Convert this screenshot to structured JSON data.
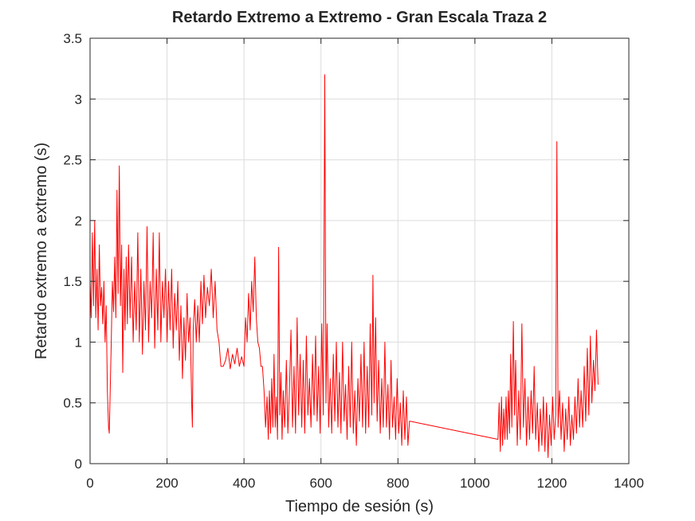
{
  "chart_data": {
    "type": "line",
    "title": "Retardo Extremo a Extremo - Gran Escala Traza 2",
    "xlabel": "Tiempo de sesión (s)",
    "ylabel": "Retardo extremo a extremo (s)",
    "xlim": [
      0,
      1400
    ],
    "ylim": [
      0,
      3.5
    ],
    "xticks": [
      0,
      200,
      400,
      600,
      800,
      1000,
      1200,
      1400
    ],
    "yticks": [
      0,
      0.5,
      1,
      1.5,
      2,
      2.5,
      3,
      3.5
    ],
    "xtick_labels": [
      "0",
      "200",
      "400",
      "600",
      "800",
      "1000",
      "1200",
      "1400"
    ],
    "ytick_labels": [
      "0",
      "0.5",
      "1",
      "1.5",
      "2",
      "2.5",
      "3",
      "3.5"
    ],
    "grid": true,
    "series": [
      {
        "color": "#ff0000",
        "points": [
          [
            0,
            1.5
          ],
          [
            3,
            1.2
          ],
          [
            6,
            1.9
          ],
          [
            9,
            1.3
          ],
          [
            12,
            2.0
          ],
          [
            15,
            1.2
          ],
          [
            18,
            1.6
          ],
          [
            21,
            1.1
          ],
          [
            24,
            1.8
          ],
          [
            27,
            1.3
          ],
          [
            30,
            1.45
          ],
          [
            33,
            1.15
          ],
          [
            36,
            1.5
          ],
          [
            39,
            1.0
          ],
          [
            42,
            1.3
          ],
          [
            45,
            0.6
          ],
          [
            48,
            0.3
          ],
          [
            50,
            0.25
          ],
          [
            52,
            0.55
          ],
          [
            55,
            1.0
          ],
          [
            58,
            1.5
          ],
          [
            61,
            1.25
          ],
          [
            64,
            1.7
          ],
          [
            67,
            1.2
          ],
          [
            70,
            2.25
          ],
          [
            73,
            1.4
          ],
          [
            76,
            2.45
          ],
          [
            79,
            1.3
          ],
          [
            82,
            1.8
          ],
          [
            85,
            0.75
          ],
          [
            88,
            1.6
          ],
          [
            91,
            1.1
          ],
          [
            94,
            1.7
          ],
          [
            97,
            1.15
          ],
          [
            100,
            1.8
          ],
          [
            104,
            1.2
          ],
          [
            108,
            1.7
          ],
          [
            112,
            1.0
          ],
          [
            116,
            1.5
          ],
          [
            120,
            1.1
          ],
          [
            124,
            1.9
          ],
          [
            128,
            1.0
          ],
          [
            132,
            1.6
          ],
          [
            136,
            0.9
          ],
          [
            140,
            1.5
          ],
          [
            144,
            1.1
          ],
          [
            148,
            1.95
          ],
          [
            152,
            1.0
          ],
          [
            156,
            1.5
          ],
          [
            160,
            1.2
          ],
          [
            164,
            1.9
          ],
          [
            168,
            0.95
          ],
          [
            172,
            1.6
          ],
          [
            176,
            1.1
          ],
          [
            180,
            1.9
          ],
          [
            184,
            1.0
          ],
          [
            188,
            1.5
          ],
          [
            192,
            1.2
          ],
          [
            196,
            1.6
          ],
          [
            200,
            1.0
          ],
          [
            204,
            1.5
          ],
          [
            208,
            1.1
          ],
          [
            212,
            1.6
          ],
          [
            216,
            0.95
          ],
          [
            220,
            1.4
          ],
          [
            224,
            1.1
          ],
          [
            228,
            1.5
          ],
          [
            232,
            0.85
          ],
          [
            236,
            1.3
          ],
          [
            240,
            0.7
          ],
          [
            244,
            1.2
          ],
          [
            248,
            0.85
          ],
          [
            252,
            1.4
          ],
          [
            256,
            1.0
          ],
          [
            260,
            1.2
          ],
          [
            264,
            0.5
          ],
          [
            266,
            0.3
          ],
          [
            268,
            1.1
          ],
          [
            272,
            1.35
          ],
          [
            276,
            1.0
          ],
          [
            280,
            1.3
          ],
          [
            284,
            1.0
          ],
          [
            288,
            1.5
          ],
          [
            292,
            1.15
          ],
          [
            296,
            1.55
          ],
          [
            300,
            1.2
          ],
          [
            305,
            1.45
          ],
          [
            310,
            1.3
          ],
          [
            315,
            1.6
          ],
          [
            320,
            1.2
          ],
          [
            325,
            1.5
          ],
          [
            330,
            1.1
          ],
          [
            335,
            1.0
          ],
          [
            340,
            0.8
          ],
          [
            346,
            0.8
          ],
          [
            352,
            0.85
          ],
          [
            358,
            0.95
          ],
          [
            364,
            0.78
          ],
          [
            370,
            0.9
          ],
          [
            376,
            0.82
          ],
          [
            382,
            0.95
          ],
          [
            388,
            0.8
          ],
          [
            394,
            0.88
          ],
          [
            400,
            0.8
          ],
          [
            404,
            1.2
          ],
          [
            408,
            1.0
          ],
          [
            412,
            1.4
          ],
          [
            416,
            1.1
          ],
          [
            420,
            1.5
          ],
          [
            424,
            1.25
          ],
          [
            428,
            1.7
          ],
          [
            432,
            1.2
          ],
          [
            436,
            1.0
          ],
          [
            440,
            0.95
          ],
          [
            444,
            0.8
          ],
          [
            448,
            0.8
          ],
          [
            452,
            0.6
          ],
          [
            456,
            0.3
          ],
          [
            460,
            0.55
          ],
          [
            463,
            0.2
          ],
          [
            466,
            0.6
          ],
          [
            469,
            0.25
          ],
          [
            472,
            0.7
          ],
          [
            475,
            0.3
          ],
          [
            478,
            0.9
          ],
          [
            481,
            0.3
          ],
          [
            484,
            0.55
          ],
          [
            487,
            0.2
          ],
          [
            490,
            1.78
          ],
          [
            493,
            0.4
          ],
          [
            496,
            0.75
          ],
          [
            499,
            0.2
          ],
          [
            502,
            0.6
          ],
          [
            506,
            0.3
          ],
          [
            510,
            0.85
          ],
          [
            514,
            0.25
          ],
          [
            518,
            0.6
          ],
          [
            522,
            1.1
          ],
          [
            526,
            0.3
          ],
          [
            530,
            0.8
          ],
          [
            534,
            0.25
          ],
          [
            538,
            1.2
          ],
          [
            542,
            0.4
          ],
          [
            546,
            0.9
          ],
          [
            550,
            0.3
          ],
          [
            554,
            0.85
          ],
          [
            558,
            0.25
          ],
          [
            562,
            1.05
          ],
          [
            566,
            0.4
          ],
          [
            570,
            0.7
          ],
          [
            574,
            0.3
          ],
          [
            578,
            0.9
          ],
          [
            582,
            0.4
          ],
          [
            586,
            1.05
          ],
          [
            590,
            0.35
          ],
          [
            594,
            0.8
          ],
          [
            598,
            0.25
          ],
          [
            602,
            1.15
          ],
          [
            606,
            0.4
          ],
          [
            610,
            3.2
          ],
          [
            613,
            0.5
          ],
          [
            616,
            1.15
          ],
          [
            620,
            0.3
          ],
          [
            624,
            0.7
          ],
          [
            628,
            0.25
          ],
          [
            632,
            0.9
          ],
          [
            636,
            0.35
          ],
          [
            640,
            1.0
          ],
          [
            644,
            0.3
          ],
          [
            648,
            0.75
          ],
          [
            652,
            0.25
          ],
          [
            656,
            1.0
          ],
          [
            660,
            0.35
          ],
          [
            664,
            0.65
          ],
          [
            668,
            0.2
          ],
          [
            672,
            0.8
          ],
          [
            676,
            0.3
          ],
          [
            680,
            1.0
          ],
          [
            684,
            0.25
          ],
          [
            688,
            0.6
          ],
          [
            692,
            0.15
          ],
          [
            696,
            0.7
          ],
          [
            700,
            0.35
          ],
          [
            704,
            0.9
          ],
          [
            708,
            0.3
          ],
          [
            712,
            1.0
          ],
          [
            716,
            0.25
          ],
          [
            720,
            0.8
          ],
          [
            724,
            0.3
          ],
          [
            728,
            1.15
          ],
          [
            732,
            0.4
          ],
          [
            735,
            1.55
          ],
          [
            738,
            0.5
          ],
          [
            742,
            1.2
          ],
          [
            746,
            0.35
          ],
          [
            750,
            0.85
          ],
          [
            754,
            0.25
          ],
          [
            758,
            0.7
          ],
          [
            762,
            0.3
          ],
          [
            766,
            1.0
          ],
          [
            770,
            0.3
          ],
          [
            774,
            0.65
          ],
          [
            778,
            0.2
          ],
          [
            782,
            0.85
          ],
          [
            786,
            0.3
          ],
          [
            790,
            0.55
          ],
          [
            794,
            0.2
          ],
          [
            798,
            0.7
          ],
          [
            802,
            0.25
          ],
          [
            806,
            0.5
          ],
          [
            810,
            0.15
          ],
          [
            814,
            0.6
          ],
          [
            818,
            0.2
          ],
          [
            822,
            0.55
          ],
          [
            826,
            0.15
          ],
          [
            830,
            0.35
          ],
          [
            1060,
            0.2
          ],
          [
            1063,
            0.5
          ],
          [
            1066,
            0.1
          ],
          [
            1069,
            0.55
          ],
          [
            1072,
            0.15
          ],
          [
            1075,
            0.45
          ],
          [
            1078,
            0.2
          ],
          [
            1081,
            0.55
          ],
          [
            1084,
            0.2
          ],
          [
            1087,
            0.6
          ],
          [
            1090,
            0.25
          ],
          [
            1093,
            0.9
          ],
          [
            1096,
            0.3
          ],
          [
            1100,
            1.17
          ],
          [
            1103,
            0.4
          ],
          [
            1106,
            0.85
          ],
          [
            1110,
            0.15
          ],
          [
            1114,
            0.6
          ],
          [
            1118,
            0.2
          ],
          [
            1122,
            1.15
          ],
          [
            1126,
            0.3
          ],
          [
            1130,
            0.7
          ],
          [
            1134,
            0.15
          ],
          [
            1138,
            0.55
          ],
          [
            1142,
            0.2
          ],
          [
            1146,
            0.6
          ],
          [
            1150,
            0.25
          ],
          [
            1154,
            0.8
          ],
          [
            1158,
            0.2
          ],
          [
            1162,
            0.5
          ],
          [
            1166,
            0.1
          ],
          [
            1170,
            0.45
          ],
          [
            1174,
            0.15
          ],
          [
            1178,
            0.55
          ],
          [
            1182,
            0.1
          ],
          [
            1186,
            0.5
          ],
          [
            1190,
            0.05
          ],
          [
            1194,
            0.4
          ],
          [
            1198,
            0.15
          ],
          [
            1202,
            0.55
          ],
          [
            1206,
            0.2
          ],
          [
            1210,
            0.4
          ],
          [
            1213,
            2.65
          ],
          [
            1216,
            0.3
          ],
          [
            1220,
            0.6
          ],
          [
            1224,
            0.2
          ],
          [
            1228,
            0.5
          ],
          [
            1232,
            0.1
          ],
          [
            1236,
            0.45
          ],
          [
            1240,
            0.2
          ],
          [
            1244,
            0.55
          ],
          [
            1248,
            0.15
          ],
          [
            1252,
            0.4
          ],
          [
            1256,
            0.2
          ],
          [
            1260,
            0.55
          ],
          [
            1264,
            0.25
          ],
          [
            1268,
            0.7
          ],
          [
            1272,
            0.3
          ],
          [
            1276,
            0.6
          ],
          [
            1280,
            0.3
          ],
          [
            1284,
            0.8
          ],
          [
            1288,
            0.35
          ],
          [
            1292,
            0.95
          ],
          [
            1296,
            0.4
          ],
          [
            1300,
            1.05
          ],
          [
            1304,
            0.5
          ],
          [
            1308,
            0.85
          ],
          [
            1312,
            0.6
          ],
          [
            1316,
            1.1
          ],
          [
            1320,
            0.65
          ]
        ]
      }
    ]
  }
}
